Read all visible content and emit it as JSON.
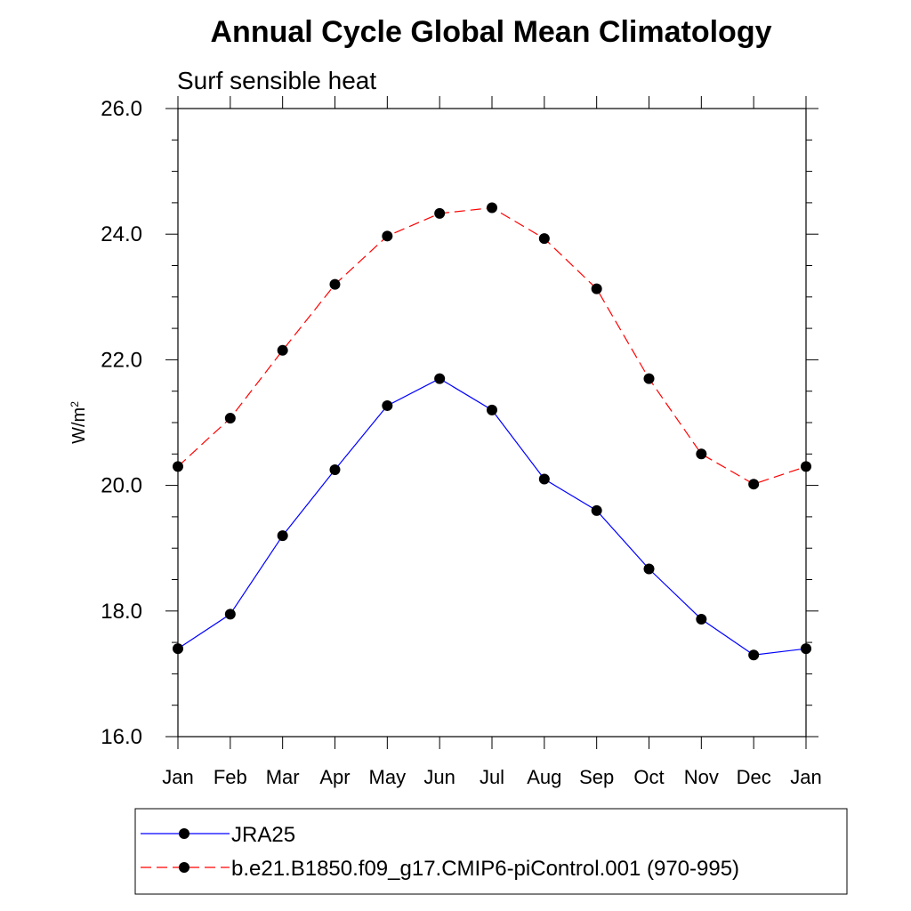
{
  "chart_data": {
    "type": "line",
    "title": "Annual Cycle Global Mean Climatology",
    "subtitle": "Surf sensible heat",
    "xlabel": "",
    "ylabel": "W/m",
    "ylabel_superscript": "2",
    "categories": [
      "Jan",
      "Feb",
      "Mar",
      "Apr",
      "May",
      "Jun",
      "Jul",
      "Aug",
      "Sep",
      "Oct",
      "Nov",
      "Dec",
      "Jan"
    ],
    "ylim": [
      16.0,
      26.0
    ],
    "yticks": [
      "16.0",
      "18.0",
      "20.0",
      "22.0",
      "24.0",
      "26.0"
    ],
    "grid": false,
    "legend_position": "bottom",
    "series": [
      {
        "name": "JRA25",
        "color": "#0000ff",
        "line_style": "solid",
        "marker": "filled-circle",
        "values": [
          17.4,
          17.95,
          19.2,
          20.25,
          21.27,
          21.7,
          21.2,
          20.1,
          19.6,
          18.67,
          17.87,
          17.3,
          17.4
        ]
      },
      {
        "name": "b.e21.B1850.f09_g17.CMIP6-piControl.001 (970-995)",
        "color": "#ff0000",
        "line_style": "dashed",
        "marker": "filled-circle",
        "values": [
          20.3,
          21.07,
          22.15,
          23.2,
          23.97,
          24.33,
          24.42,
          23.93,
          23.13,
          21.7,
          20.5,
          20.02,
          20.3
        ]
      }
    ]
  }
}
